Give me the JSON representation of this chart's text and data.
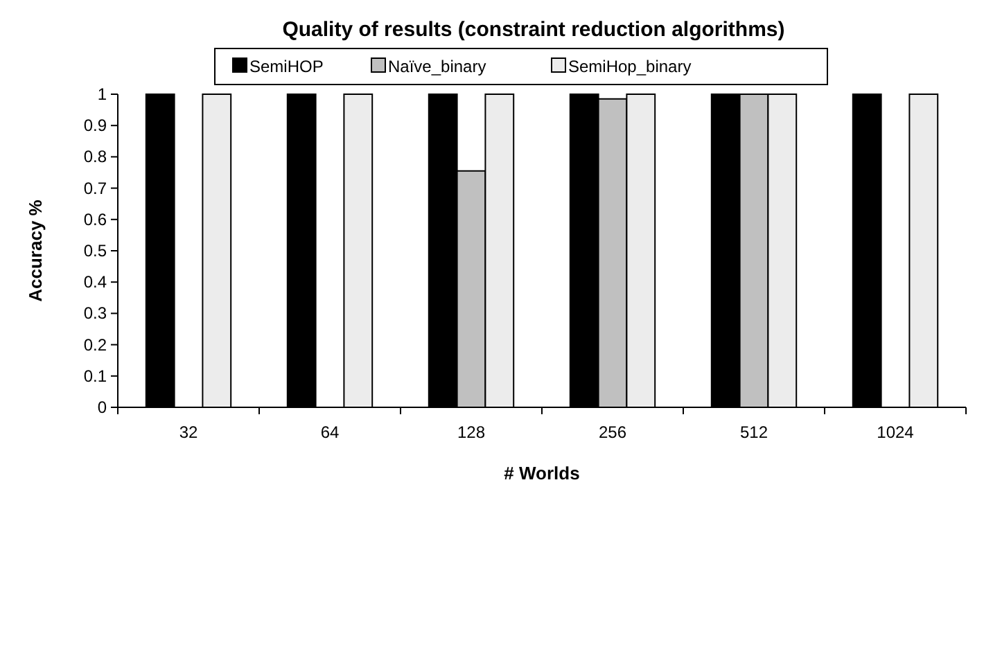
{
  "chart_data": {
    "type": "bar",
    "title": "Quality of results (constraint reduction algorithms)",
    "xlabel": "# Worlds",
    "ylabel": "Accuracy %",
    "categories": [
      "32",
      "64",
      "128",
      "256",
      "512",
      "1024"
    ],
    "series": [
      {
        "name": "SemiHOP",
        "color": "#000000",
        "values": [
          1,
          1,
          1,
          1,
          1,
          1
        ]
      },
      {
        "name": "Naïve_binary",
        "color": "#c0c0c0",
        "values": [
          0,
          0,
          0.755,
          0.985,
          1,
          0
        ]
      },
      {
        "name": "SemiHop_binary",
        "color": "#ececec",
        "values": [
          1,
          1,
          1,
          1,
          1,
          1
        ]
      }
    ],
    "ylim": [
      0,
      1
    ],
    "yticks": [
      0,
      {
        "value": 0.1,
        "label": "0.1"
      },
      {
        "value": 0.2,
        "label": "0.2"
      },
      {
        "value": 0.3,
        "label": "0.3"
      },
      {
        "value": 0.4,
        "label": "0.4"
      },
      {
        "value": 0.5,
        "label": "0.5"
      },
      {
        "value": 0.6,
        "label": "0.6"
      },
      {
        "value": 0.7,
        "label": "0.7"
      },
      {
        "value": 0.8,
        "label": "0.8"
      },
      {
        "value": 0.9,
        "label": "0.9"
      },
      1
    ],
    "legend": "top",
    "grid": false
  }
}
